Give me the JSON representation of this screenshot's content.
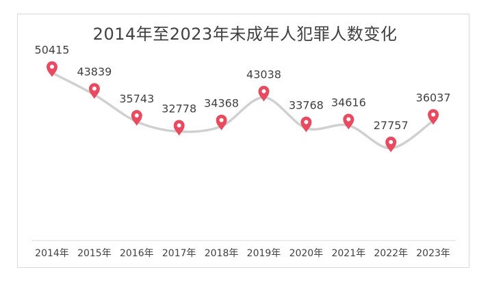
{
  "chart_data": {
    "type": "line",
    "title": "2014年至2023年未成年人犯罪人数变化",
    "categories": [
      "2014年",
      "2015年",
      "2016年",
      "2017年",
      "2018年",
      "2019年",
      "2020年",
      "2021年",
      "2022年",
      "2023年"
    ],
    "series": [
      {
        "values": [
          50415,
          43839,
          35743,
          32778,
          34368,
          43038,
          33768,
          34616,
          27757,
          36037
        ]
      }
    ],
    "xlabel": "",
    "ylabel": "",
    "ylim": [
      0,
      60000
    ],
    "grid": false,
    "legend": "none",
    "data_labels": true,
    "colors": {
      "line": "#d0d0d0",
      "marker": "#e84a5f",
      "axis": "#d9d9d9",
      "text": "#404040"
    }
  }
}
